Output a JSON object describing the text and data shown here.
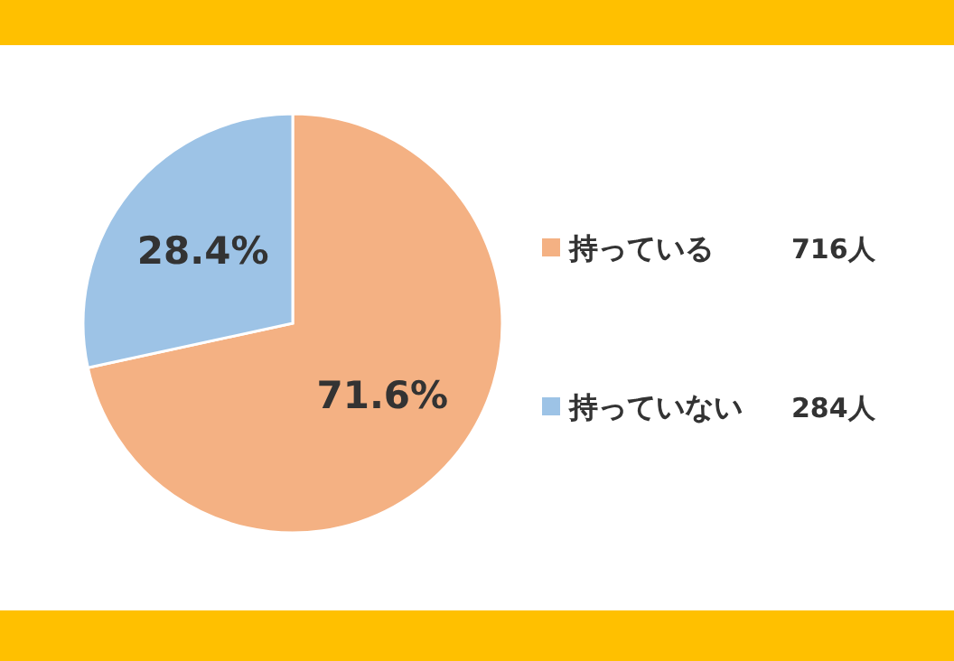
{
  "chart_data": {
    "type": "pie",
    "categories": [
      "持っている",
      "持っていない"
    ],
    "values": [
      71.6,
      28.4
    ],
    "colors": [
      "#f4b183",
      "#9dc3e6"
    ],
    "value_labels": [
      "71.6%",
      "28.4%"
    ],
    "legend": "right",
    "annotations": [
      {
        "text": "716人",
        "x": "持っている"
      },
      {
        "text": "284人",
        "x": "持っていない"
      }
    ]
  }
}
